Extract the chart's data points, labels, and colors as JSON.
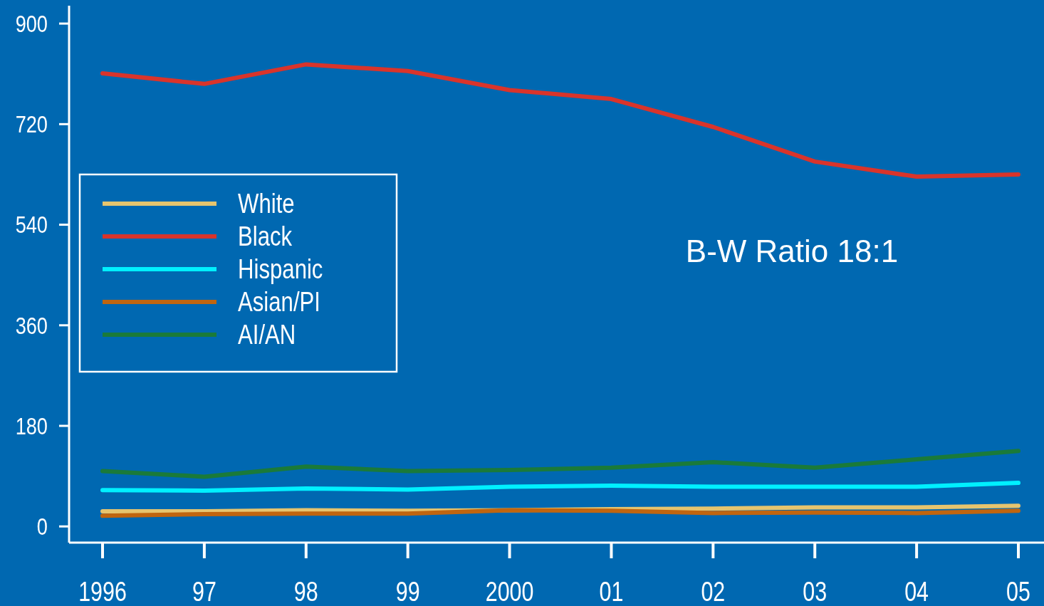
{
  "chart_data": {
    "type": "line",
    "categories": [
      "1996",
      "97",
      "98",
      "99",
      "2000",
      "01",
      "02",
      "03",
      "04",
      "05"
    ],
    "series": [
      {
        "name": "White",
        "color": "#e6c46e",
        "values": [
          27,
          27,
          29,
          28,
          29,
          31,
          32,
          34,
          34,
          37
        ]
      },
      {
        "name": "Black",
        "color": "#d9342b",
        "values": [
          811,
          792,
          827,
          815,
          781,
          765,
          715,
          653,
          626,
          630
        ]
      },
      {
        "name": "Hispanic",
        "color": "#00f0ff",
        "values": [
          65,
          64,
          68,
          66,
          71,
          73,
          71,
          71,
          71,
          78
        ]
      },
      {
        "name": "Asian/PI",
        "color": "#c0650f",
        "values": [
          19,
          22,
          23,
          23,
          29,
          28,
          24,
          25,
          24,
          28
        ]
      },
      {
        "name": "AI/AN",
        "color": "#1a7a3a",
        "values": [
          99,
          89,
          107,
          99,
          101,
          105,
          115,
          105,
          120,
          135
        ]
      }
    ],
    "ylim": [
      -29,
      932
    ],
    "yticks": [
      0,
      180,
      360,
      540,
      720,
      900
    ],
    "grid": false,
    "legend": "center left",
    "marker": "none",
    "line_style": "solid",
    "annotations": [
      {
        "text": "B-W Ratio 18:1"
      }
    ]
  }
}
